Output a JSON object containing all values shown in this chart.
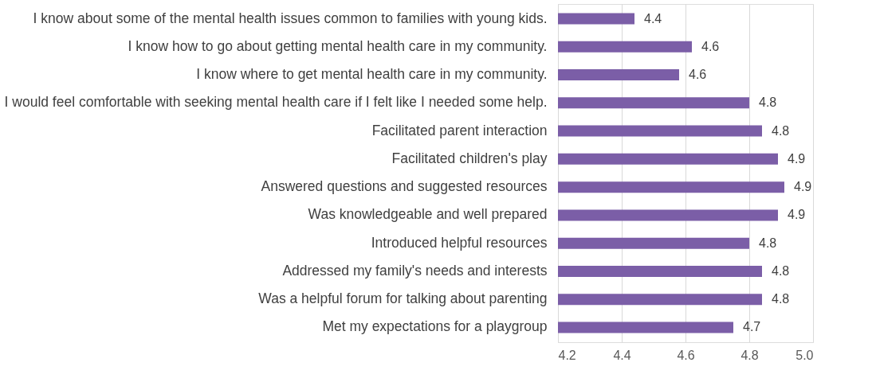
{
  "chart_data": {
    "type": "bar",
    "orientation": "horizontal",
    "categories": [
      "I know about some of the mental health issues common to families with young kids.",
      "I know how to go about getting mental health care in my community.",
      "I know where to get mental health care in my community.",
      "I would feel comfortable with seeking mental health care if I felt like I needed some help.",
      "Facilitated parent interaction",
      "Facilitated children's play",
      "Answered questions and suggested resources",
      "Was knowledgeable and well prepared",
      "Introduced helpful resources",
      "Addressed my family's needs and interests",
      "Was a helpful forum for talking about parenting",
      "Met my expectations for a playgroup"
    ],
    "values": [
      4.44,
      4.62,
      4.58,
      4.8,
      4.84,
      4.89,
      4.91,
      4.89,
      4.8,
      4.84,
      4.84,
      4.75
    ],
    "value_labels": [
      "4.4",
      "4.6",
      "4.6",
      "4.8",
      "4.8",
      "4.9",
      "4.9",
      "4.9",
      "4.8",
      "4.8",
      "4.8",
      "4.7"
    ],
    "color": "#7b5ea7",
    "xlim": [
      4.2,
      5.0
    ],
    "xticks": [
      {
        "value": 4.2,
        "label": "4.2"
      },
      {
        "value": 4.4,
        "label": "4.4"
      },
      {
        "value": 4.6,
        "label": "4.6"
      },
      {
        "value": 4.8,
        "label": "4.8"
      },
      {
        "value": 5.0,
        "label": "5.0"
      }
    ],
    "grid": "x"
  }
}
